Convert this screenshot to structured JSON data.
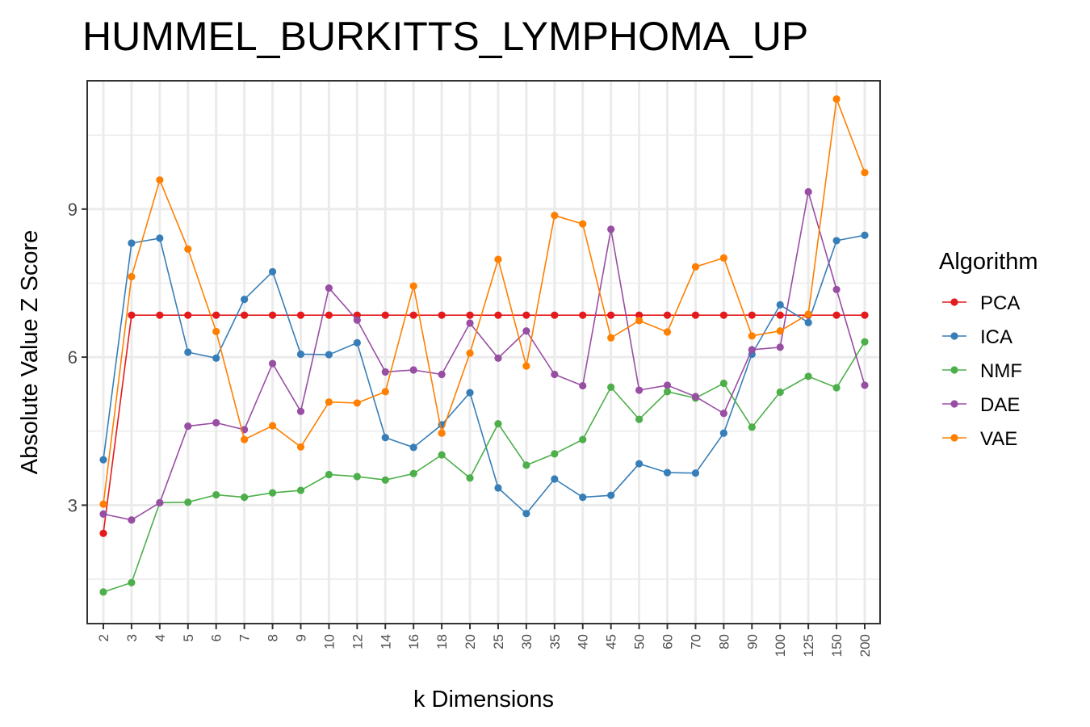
{
  "chart_data": {
    "type": "line",
    "title": "HUMMEL_BURKITTS_LYMPHOMA_UP",
    "xlabel": "k Dimensions",
    "ylabel": "Absolute Value Z Score",
    "categories": [
      "2",
      "3",
      "4",
      "5",
      "6",
      "7",
      "8",
      "9",
      "10",
      "12",
      "14",
      "16",
      "18",
      "20",
      "25",
      "30",
      "35",
      "40",
      "45",
      "50",
      "60",
      "70",
      "80",
      "90",
      "100",
      "125",
      "150",
      "200"
    ],
    "yticks": [
      3,
      6,
      9
    ],
    "ylim": [
      0.6,
      11.6
    ],
    "grid": true,
    "legend": {
      "title": "Algorithm",
      "position": "right"
    },
    "series": [
      {
        "name": "PCA",
        "color": "#E41A1C",
        "values": [
          2.43,
          6.85,
          6.85,
          6.85,
          6.85,
          6.85,
          6.85,
          6.85,
          6.85,
          6.85,
          6.85,
          6.85,
          6.85,
          6.85,
          6.85,
          6.85,
          6.85,
          6.85,
          6.85,
          6.85,
          6.85,
          6.85,
          6.85,
          6.85,
          6.85,
          6.85,
          6.85,
          6.85
        ]
      },
      {
        "name": "ICA",
        "color": "#377EB8",
        "values": [
          3.92,
          8.31,
          8.41,
          6.1,
          5.98,
          7.17,
          7.73,
          6.06,
          6.05,
          6.29,
          4.37,
          4.17,
          4.63,
          5.28,
          3.35,
          2.83,
          3.53,
          3.16,
          3.2,
          3.84,
          3.66,
          3.65,
          4.46,
          6.06,
          7.06,
          6.7,
          8.36,
          8.47
        ]
      },
      {
        "name": "NMF",
        "color": "#4DAF4A",
        "values": [
          1.24,
          1.43,
          3.05,
          3.06,
          3.21,
          3.16,
          3.25,
          3.3,
          3.62,
          3.58,
          3.51,
          3.64,
          4.02,
          3.55,
          4.65,
          3.81,
          4.04,
          4.33,
          5.39,
          4.74,
          5.3,
          5.17,
          5.47,
          4.58,
          5.29,
          5.61,
          5.38,
          6.31
        ]
      },
      {
        "name": "DAE",
        "color": "#984EA3",
        "values": [
          2.82,
          2.7,
          3.05,
          4.6,
          4.67,
          4.53,
          5.87,
          4.9,
          7.4,
          6.75,
          5.7,
          5.74,
          5.65,
          6.69,
          5.98,
          6.53,
          5.65,
          5.42,
          8.59,
          5.33,
          5.43,
          5.2,
          4.86,
          6.15,
          6.2,
          9.35,
          7.37,
          5.43
        ]
      },
      {
        "name": "VAE",
        "color": "#FF7F00",
        "values": [
          3.02,
          7.63,
          9.59,
          8.19,
          6.52,
          4.33,
          4.61,
          4.18,
          5.09,
          5.07,
          5.3,
          7.44,
          4.46,
          6.08,
          7.98,
          5.82,
          8.87,
          8.7,
          6.39,
          6.74,
          6.51,
          7.83,
          8.01,
          6.43,
          6.53,
          6.87,
          11.23,
          9.74
        ]
      }
    ]
  }
}
